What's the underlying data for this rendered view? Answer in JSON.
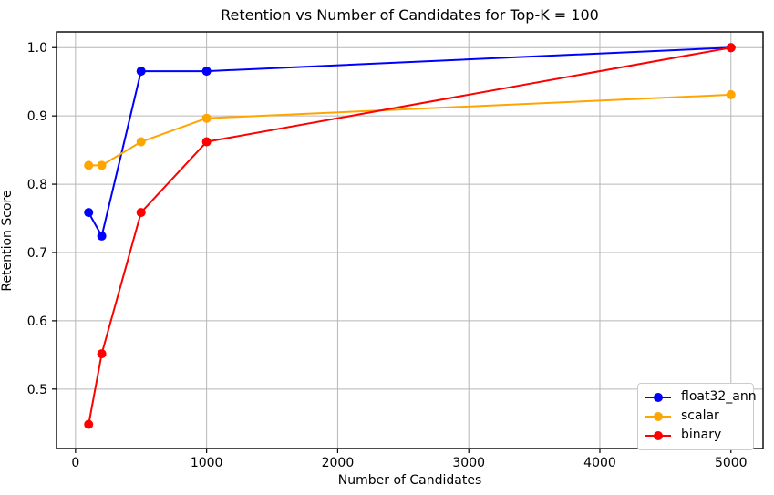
{
  "figure": {
    "title": "Retention vs Number of Candidates for Top-K = 100"
  },
  "chart_data": {
    "type": "line",
    "title": "Retention vs Number of Candidates for Top-K = 100",
    "xlabel": "Number of Candidates",
    "ylabel": "Retention Score",
    "x": [
      100,
      200,
      500,
      1000,
      5000
    ],
    "series": [
      {
        "name": "float32_ann",
        "color": "#0000ff",
        "values": [
          0.7586,
          0.7241,
          0.9655,
          0.9655,
          1.0
        ]
      },
      {
        "name": "scalar",
        "color": "#ffa500",
        "values": [
          0.8276,
          0.8276,
          0.8621,
          0.8966,
          0.931
        ]
      },
      {
        "name": "binary",
        "color": "#ff0000",
        "values": [
          0.4483,
          0.5517,
          0.7586,
          0.8621,
          1.0
        ]
      }
    ],
    "x_ticks": [
      0,
      1000,
      2000,
      3000,
      4000,
      5000
    ],
    "y_ticks": [
      0.5,
      0.6,
      0.7,
      0.8,
      0.9,
      1.0
    ],
    "xlim": [
      -145,
      5245
    ],
    "ylim": [
      0.413,
      1.023
    ],
    "grid": true,
    "legend_position": "lower right",
    "marker": "o"
  },
  "colors": {
    "grid": "#b6b6b6",
    "spine": "#000000",
    "tick": "#000000",
    "text": "#000000",
    "background": "#ffffff",
    "legend_border": "#cccccc"
  }
}
